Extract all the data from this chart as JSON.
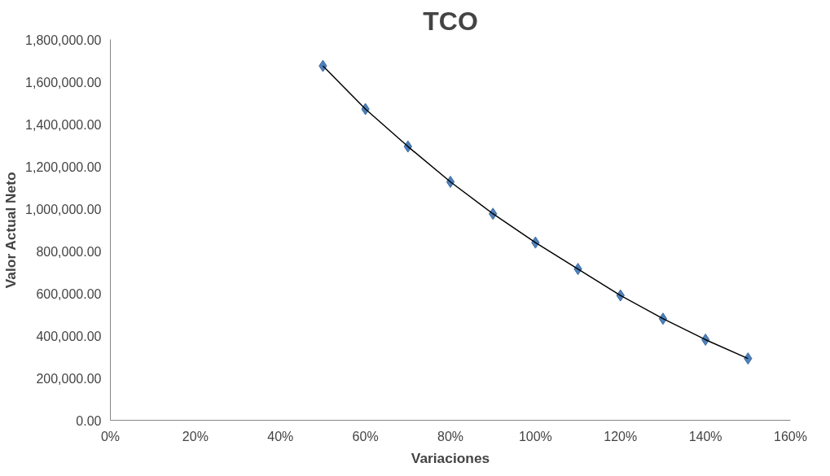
{
  "chart_data": {
    "type": "scatter",
    "title": "TCO",
    "xlabel": "Variaciones",
    "ylabel": "Valor Actual Neto",
    "x": [
      50,
      60,
      70,
      80,
      90,
      100,
      110,
      120,
      130,
      140,
      150
    ],
    "series": [
      {
        "color": "#4f81bd",
        "marker": "diamond",
        "values": [
          1675000,
          1471000,
          1294000,
          1127000,
          976000,
          840000,
          715000,
          590000,
          480000,
          381000,
          292000
        ]
      },
      {
        "type": "line",
        "color": "#000000",
        "line_style": "solid",
        "values": [
          1675000,
          1471000,
          1294000,
          1127000,
          976000,
          840000,
          715000,
          590000,
          480000,
          381000,
          292000
        ]
      }
    ],
    "xlim": [
      0,
      160
    ],
    "xticks": [
      {
        "value": 0,
        "label": "0%"
      },
      {
        "value": 20,
        "label": "20%"
      },
      {
        "value": 40,
        "label": "40%"
      },
      {
        "value": 60,
        "label": "60%"
      },
      {
        "value": 80,
        "label": "80%"
      },
      {
        "value": 100,
        "label": "100%"
      },
      {
        "value": 120,
        "label": "120%"
      },
      {
        "value": 140,
        "label": "140%"
      },
      {
        "value": 160,
        "label": "160%"
      }
    ],
    "ylim": [
      0,
      1800000
    ],
    "yticks": [
      {
        "value": 0,
        "label": "0.00"
      },
      {
        "value": 200000,
        "label": "200,000.00"
      },
      {
        "value": 400000,
        "label": "400,000.00"
      },
      {
        "value": 600000,
        "label": "600,000.00"
      },
      {
        "value": 800000,
        "label": "800,000.00"
      },
      {
        "value": 1000000,
        "label": "1,000,000.00"
      },
      {
        "value": 1200000,
        "label": "1,200,000.00"
      },
      {
        "value": 1400000,
        "label": "1,400,000.00"
      },
      {
        "value": 1600000,
        "label": "1,600,000.00"
      },
      {
        "value": 1800000,
        "label": "1,800,000.00"
      }
    ],
    "grid": false
  }
}
